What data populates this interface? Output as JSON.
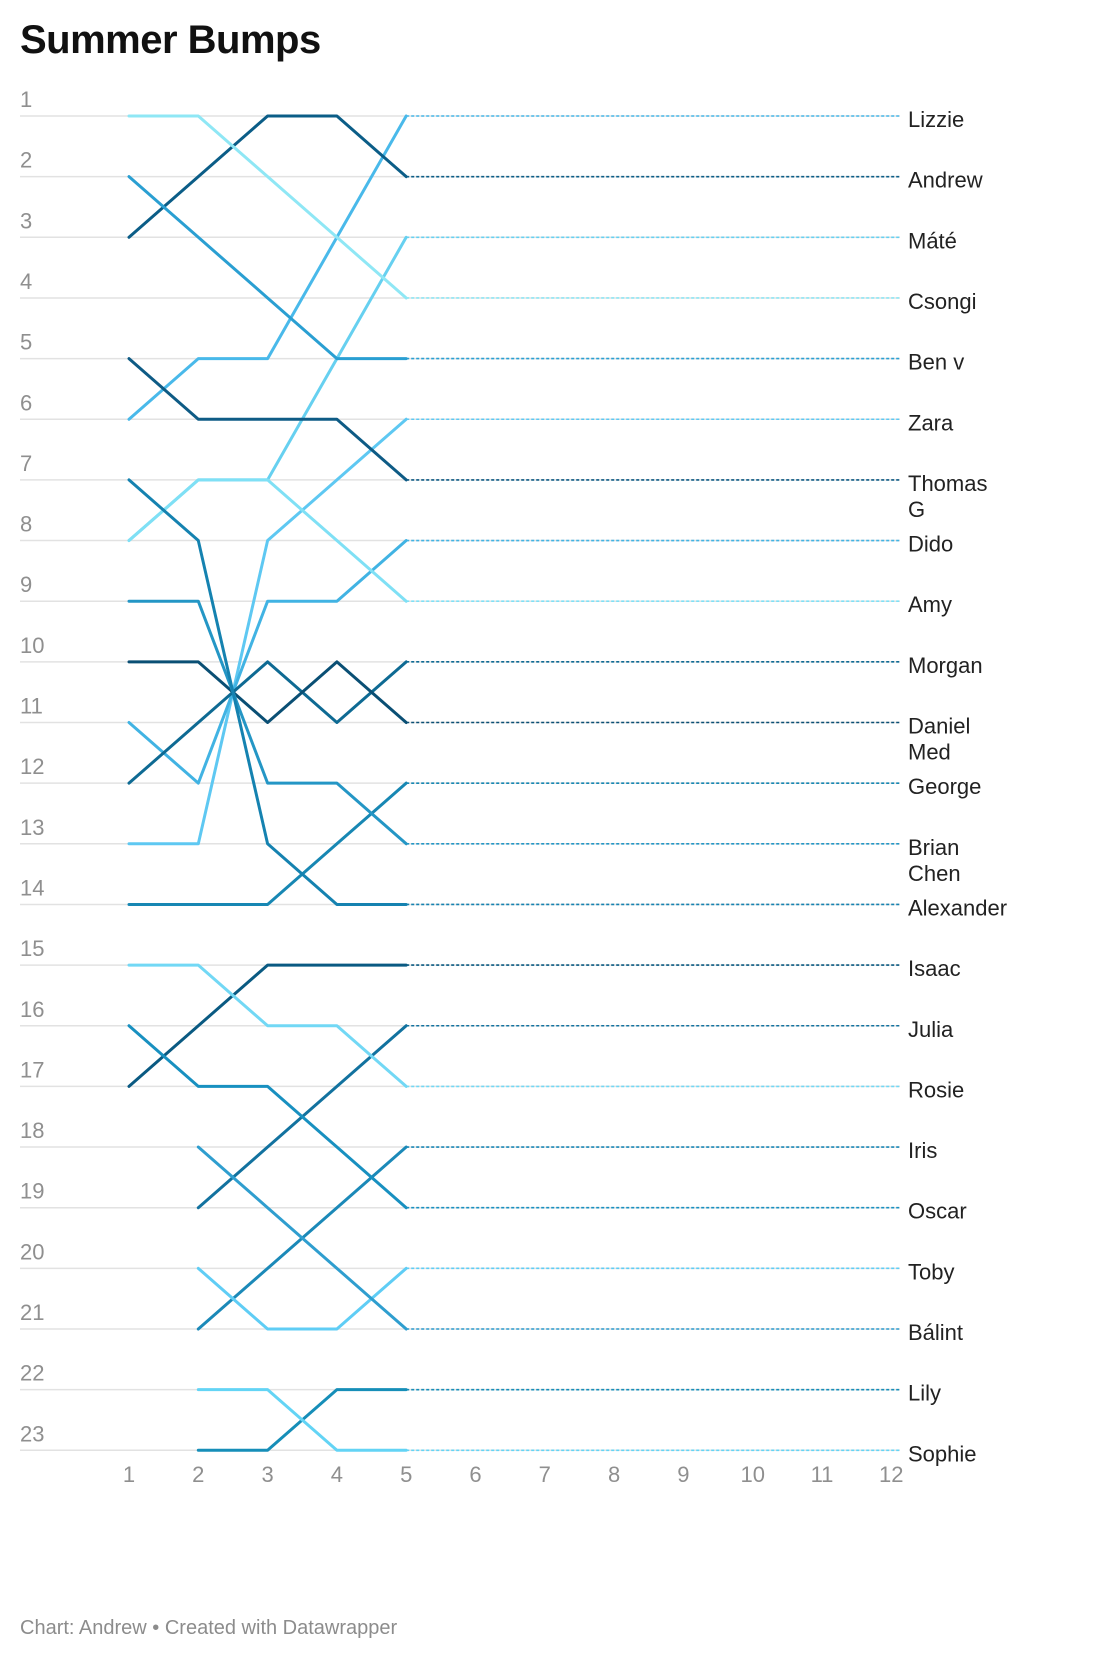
{
  "title": "Summer Bumps",
  "footer": "Chart: Andrew • Created with Datawrapper",
  "chart_data": {
    "type": "line",
    "title": "Summer Bumps",
    "xlabel": "",
    "ylabel": "",
    "x_ticks": [
      1,
      2,
      3,
      4,
      5,
      6,
      7,
      8,
      9,
      10,
      11,
      12
    ],
    "xlim": [
      1,
      12
    ],
    "y_ticks": [
      1,
      2,
      3,
      4,
      5,
      6,
      7,
      8,
      9,
      10,
      11,
      12,
      13,
      14,
      15,
      16,
      17,
      18,
      19,
      20,
      21,
      22,
      23
    ],
    "ylim": [
      1,
      23
    ],
    "y_reversed": true,
    "grid": true,
    "label_position": "right",
    "series": [
      {
        "name": "Lizzie",
        "label_lines": [
          "Lizzie"
        ],
        "color": "#49b9ea",
        "x": [
          1,
          2,
          3,
          4,
          5
        ],
        "values": [
          6,
          5,
          5,
          3,
          1
        ]
      },
      {
        "name": "Andrew",
        "label_lines": [
          "Andrew"
        ],
        "color": "#0b5d87",
        "x": [
          1,
          2,
          3,
          4,
          5
        ],
        "values": [
          3,
          2,
          1,
          1,
          2
        ]
      },
      {
        "name": "Máté",
        "label_lines": [
          "Máté"
        ],
        "color": "#66d0f0",
        "x": [
          1,
          2,
          3,
          4,
          5
        ],
        "values": [
          8,
          7,
          7,
          5,
          3
        ]
      },
      {
        "name": "Csongi",
        "label_lines": [
          "Csongi"
        ],
        "color": "#8fe7f5",
        "x": [
          1,
          2,
          3,
          4,
          5
        ],
        "values": [
          1,
          1,
          2,
          3,
          4
        ]
      },
      {
        "name": "Ben v",
        "label_lines": [
          "Ben v"
        ],
        "color": "#2a9fd2",
        "x": [
          1,
          2,
          3,
          4,
          5
        ],
        "values": [
          2,
          3,
          4,
          5,
          5
        ]
      },
      {
        "name": "Zara",
        "label_lines": [
          "Zara"
        ],
        "color": "#5ec8f2",
        "x": [
          1,
          2,
          3,
          4,
          5
        ],
        "values": [
          13,
          13,
          8,
          7,
          6
        ]
      },
      {
        "name": "Thomas G",
        "label_lines": [
          "Thomas",
          "G"
        ],
        "color": "#0e5b85",
        "x": [
          1,
          2,
          3,
          4,
          5
        ],
        "values": [
          5,
          6,
          6,
          6,
          7
        ]
      },
      {
        "name": "Dido",
        "label_lines": [
          "Dido"
        ],
        "color": "#41b3e3",
        "x": [
          1,
          2,
          3,
          4,
          5
        ],
        "values": [
          11,
          12,
          9,
          9,
          8
        ]
      },
      {
        "name": "Amy",
        "label_lines": [
          "Amy"
        ],
        "color": "#7fe0f5",
        "x": [
          1,
          2,
          3,
          4,
          5
        ],
        "values": [
          8,
          7,
          7,
          8,
          9
        ]
      },
      {
        "name": "Morgan",
        "label_lines": [
          "Morgan"
        ],
        "color": "#0e6a93",
        "x": [
          1,
          2,
          3,
          4,
          5
        ],
        "values": [
          12,
          11,
          10,
          11,
          10
        ]
      },
      {
        "name": "Daniel Med",
        "label_lines": [
          "Daniel",
          "Med"
        ],
        "color": "#0a4f74",
        "x": [
          1,
          2,
          3,
          4,
          5
        ],
        "values": [
          10,
          10,
          11,
          10,
          11
        ]
      },
      {
        "name": "George",
        "label_lines": [
          "George"
        ],
        "color": "#1787b3",
        "x": [
          1,
          2,
          3,
          4,
          5
        ],
        "values": [
          14,
          14,
          14,
          13,
          12
        ]
      },
      {
        "name": "Brian Chen",
        "label_lines": [
          "Brian",
          "Chen"
        ],
        "color": "#2496c5",
        "x": [
          1,
          2,
          3,
          4,
          5
        ],
        "values": [
          9,
          9,
          12,
          12,
          13
        ]
      },
      {
        "name": "Alexander",
        "label_lines": [
          "Alexander"
        ],
        "color": "#1582b0",
        "x": [
          1,
          2,
          3,
          4,
          5
        ],
        "values": [
          7,
          8,
          13,
          14,
          14
        ]
      },
      {
        "name": "Isaac",
        "label_lines": [
          "Isaac"
        ],
        "color": "#0a5a82",
        "x": [
          1,
          2,
          3,
          4,
          5
        ],
        "values": [
          17,
          16,
          15,
          15,
          15
        ]
      },
      {
        "name": "Julia",
        "label_lines": [
          "Julia"
        ],
        "color": "#12729f",
        "x": [
          2,
          3,
          4,
          5
        ],
        "values": [
          19,
          18,
          17,
          16
        ]
      },
      {
        "name": "Rosie",
        "label_lines": [
          "Rosie"
        ],
        "color": "#72d8f5",
        "x": [
          1,
          2,
          3,
          4,
          5
        ],
        "values": [
          15,
          15,
          16,
          16,
          17
        ]
      },
      {
        "name": "Iris",
        "label_lines": [
          "Iris"
        ],
        "color": "#1b89b8",
        "x": [
          2,
          3,
          4,
          5
        ],
        "values": [
          21,
          20,
          19,
          18
        ]
      },
      {
        "name": "Oscar",
        "label_lines": [
          "Oscar"
        ],
        "color": "#1890c0",
        "x": [
          1,
          2,
          3,
          4,
          5
        ],
        "values": [
          16,
          17,
          17,
          18,
          19
        ]
      },
      {
        "name": "Toby",
        "label_lines": [
          "Toby"
        ],
        "color": "#5fcdf5",
        "x": [
          2,
          3,
          4,
          5
        ],
        "values": [
          20,
          21,
          21,
          20
        ]
      },
      {
        "name": "Bálint",
        "label_lines": [
          "Bálint"
        ],
        "color": "#2f9ecf",
        "x": [
          2,
          3,
          4,
          5
        ],
        "values": [
          18,
          19,
          20,
          21
        ]
      },
      {
        "name": "Lily",
        "label_lines": [
          "Lily"
        ],
        "color": "#168eb8",
        "x": [
          2,
          3,
          4,
          5
        ],
        "values": [
          23,
          23,
          22,
          22
        ]
      },
      {
        "name": "Sophie",
        "label_lines": [
          "Sophie"
        ],
        "color": "#63d4f5",
        "x": [
          2,
          3,
          4,
          5
        ],
        "values": [
          22,
          22,
          23,
          23
        ]
      }
    ]
  }
}
